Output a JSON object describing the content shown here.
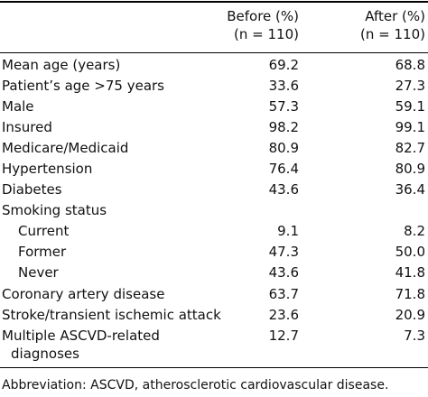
{
  "table": {
    "headers": {
      "before_line1": "Before (%)",
      "before_line2": "(n = 110)",
      "after_line1": "After (%)",
      "after_line2": "(n = 110)"
    },
    "rows": [
      {
        "label": "Mean age (years)",
        "before": "69.2",
        "after": "68.8"
      },
      {
        "label": "Patient’s age >75 years",
        "before": "33.6",
        "after": "27.3"
      },
      {
        "label": "Male",
        "before": "57.3",
        "after": "59.1"
      },
      {
        "label": "Insured",
        "before": "98.2",
        "after": "99.1"
      },
      {
        "label": "Medicare/Medicaid",
        "before": "80.9",
        "after": "82.7"
      },
      {
        "label": "Hypertension",
        "before": "76.4",
        "after": "80.9"
      },
      {
        "label": "Diabetes",
        "before": "43.6",
        "after": "36.4"
      },
      {
        "label": "Smoking status",
        "before": "",
        "after": ""
      },
      {
        "label": "Current",
        "before": "9.1",
        "after": "8.2"
      },
      {
        "label": "Former",
        "before": "47.3",
        "after": "50.0"
      },
      {
        "label": "Never",
        "before": "43.6",
        "after": "41.8"
      },
      {
        "label": "Coronary artery disease",
        "before": "63.7",
        "after": "71.8"
      },
      {
        "label": "Stroke/transient ischemic attack",
        "before": "23.6",
        "after": "20.9"
      },
      {
        "label": "Multiple ASCVD-related",
        "label_line2": "diagnoses",
        "before": "12.7",
        "after": "7.3"
      }
    ],
    "footnote": "Abbreviation: ASCVD, atherosclerotic cardiovascular disease."
  }
}
